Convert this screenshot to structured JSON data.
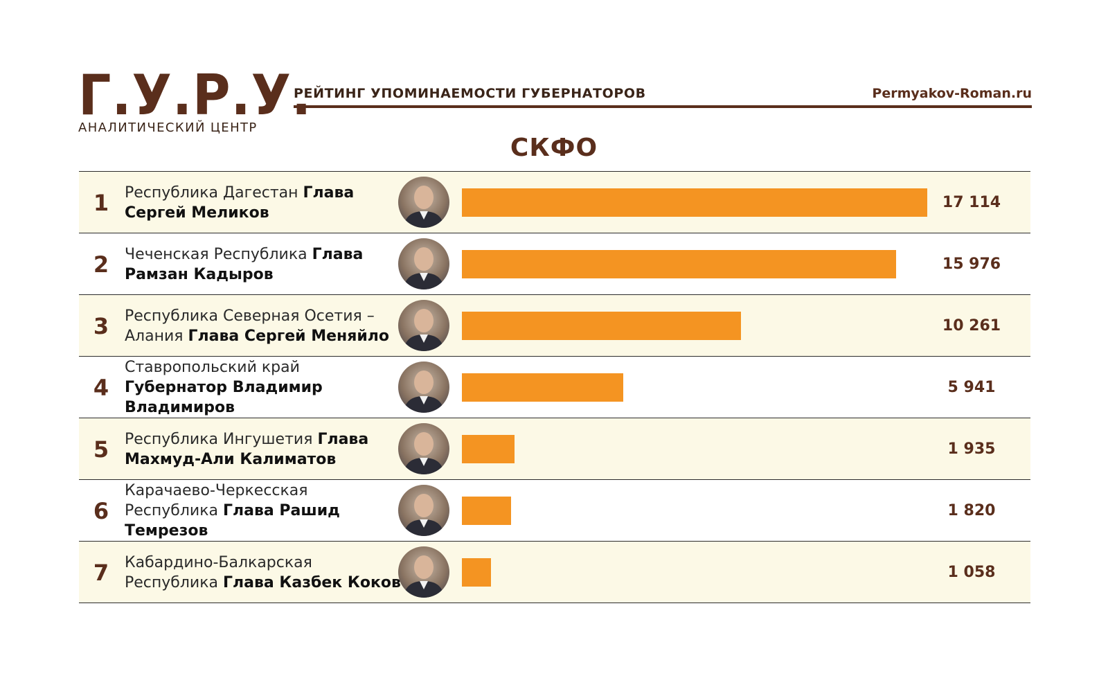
{
  "header": {
    "logo_title": "Г.У.Р.У.",
    "logo_subtitle": "АНАЛИТИЧЕСКИЙ ЦЕНТР",
    "title": "РЕЙТИНГ УПОМИНАЕМОСТИ ГУБЕРНАТОРОВ",
    "site": "Permyakov-Roman.ru"
  },
  "region_title": "СКФО",
  "colors": {
    "brand_brown": "#5a2e1c",
    "bar_orange": "#f49422",
    "row_shade": "#fcf9e6"
  },
  "chart_data": {
    "type": "bar",
    "orientation": "horizontal",
    "title": "СКФО",
    "xlim": [
      0,
      17114
    ],
    "grid": false,
    "rows": [
      {
        "rank": "1",
        "region": "Республика Дагестан",
        "person": "Глава Сергей Меликов",
        "value": 17114,
        "value_label": "17 114"
      },
      {
        "rank": "2",
        "region": "Чеченская Республика",
        "person": "Глава Рамзан Кадыров",
        "value": 15976,
        "value_label": "15 976"
      },
      {
        "rank": "3",
        "region": "Республика Северная Осетия – Алания",
        "person": "Глава Сергей Меняйло",
        "value": 10261,
        "value_label": "10 261"
      },
      {
        "rank": "4",
        "region": "Ставропольский край",
        "person": "Губернатор Владимир Владимиров",
        "value": 5941,
        "value_label": "5 941"
      },
      {
        "rank": "5",
        "region": "Республика Ингушетия",
        "person": "Глава Махмуд-Али Калиматов",
        "value": 1935,
        "value_label": "1 935"
      },
      {
        "rank": "6",
        "region": "Карачаево-Черкесская Республика",
        "person": "Глава Рашид Темрезов",
        "value": 1820,
        "value_label": "1 820"
      },
      {
        "rank": "7",
        "region": "Кабардино-Балкарская Республика",
        "person": "Глава Казбек Коков",
        "value": 1058,
        "value_label": "1 058"
      }
    ]
  }
}
